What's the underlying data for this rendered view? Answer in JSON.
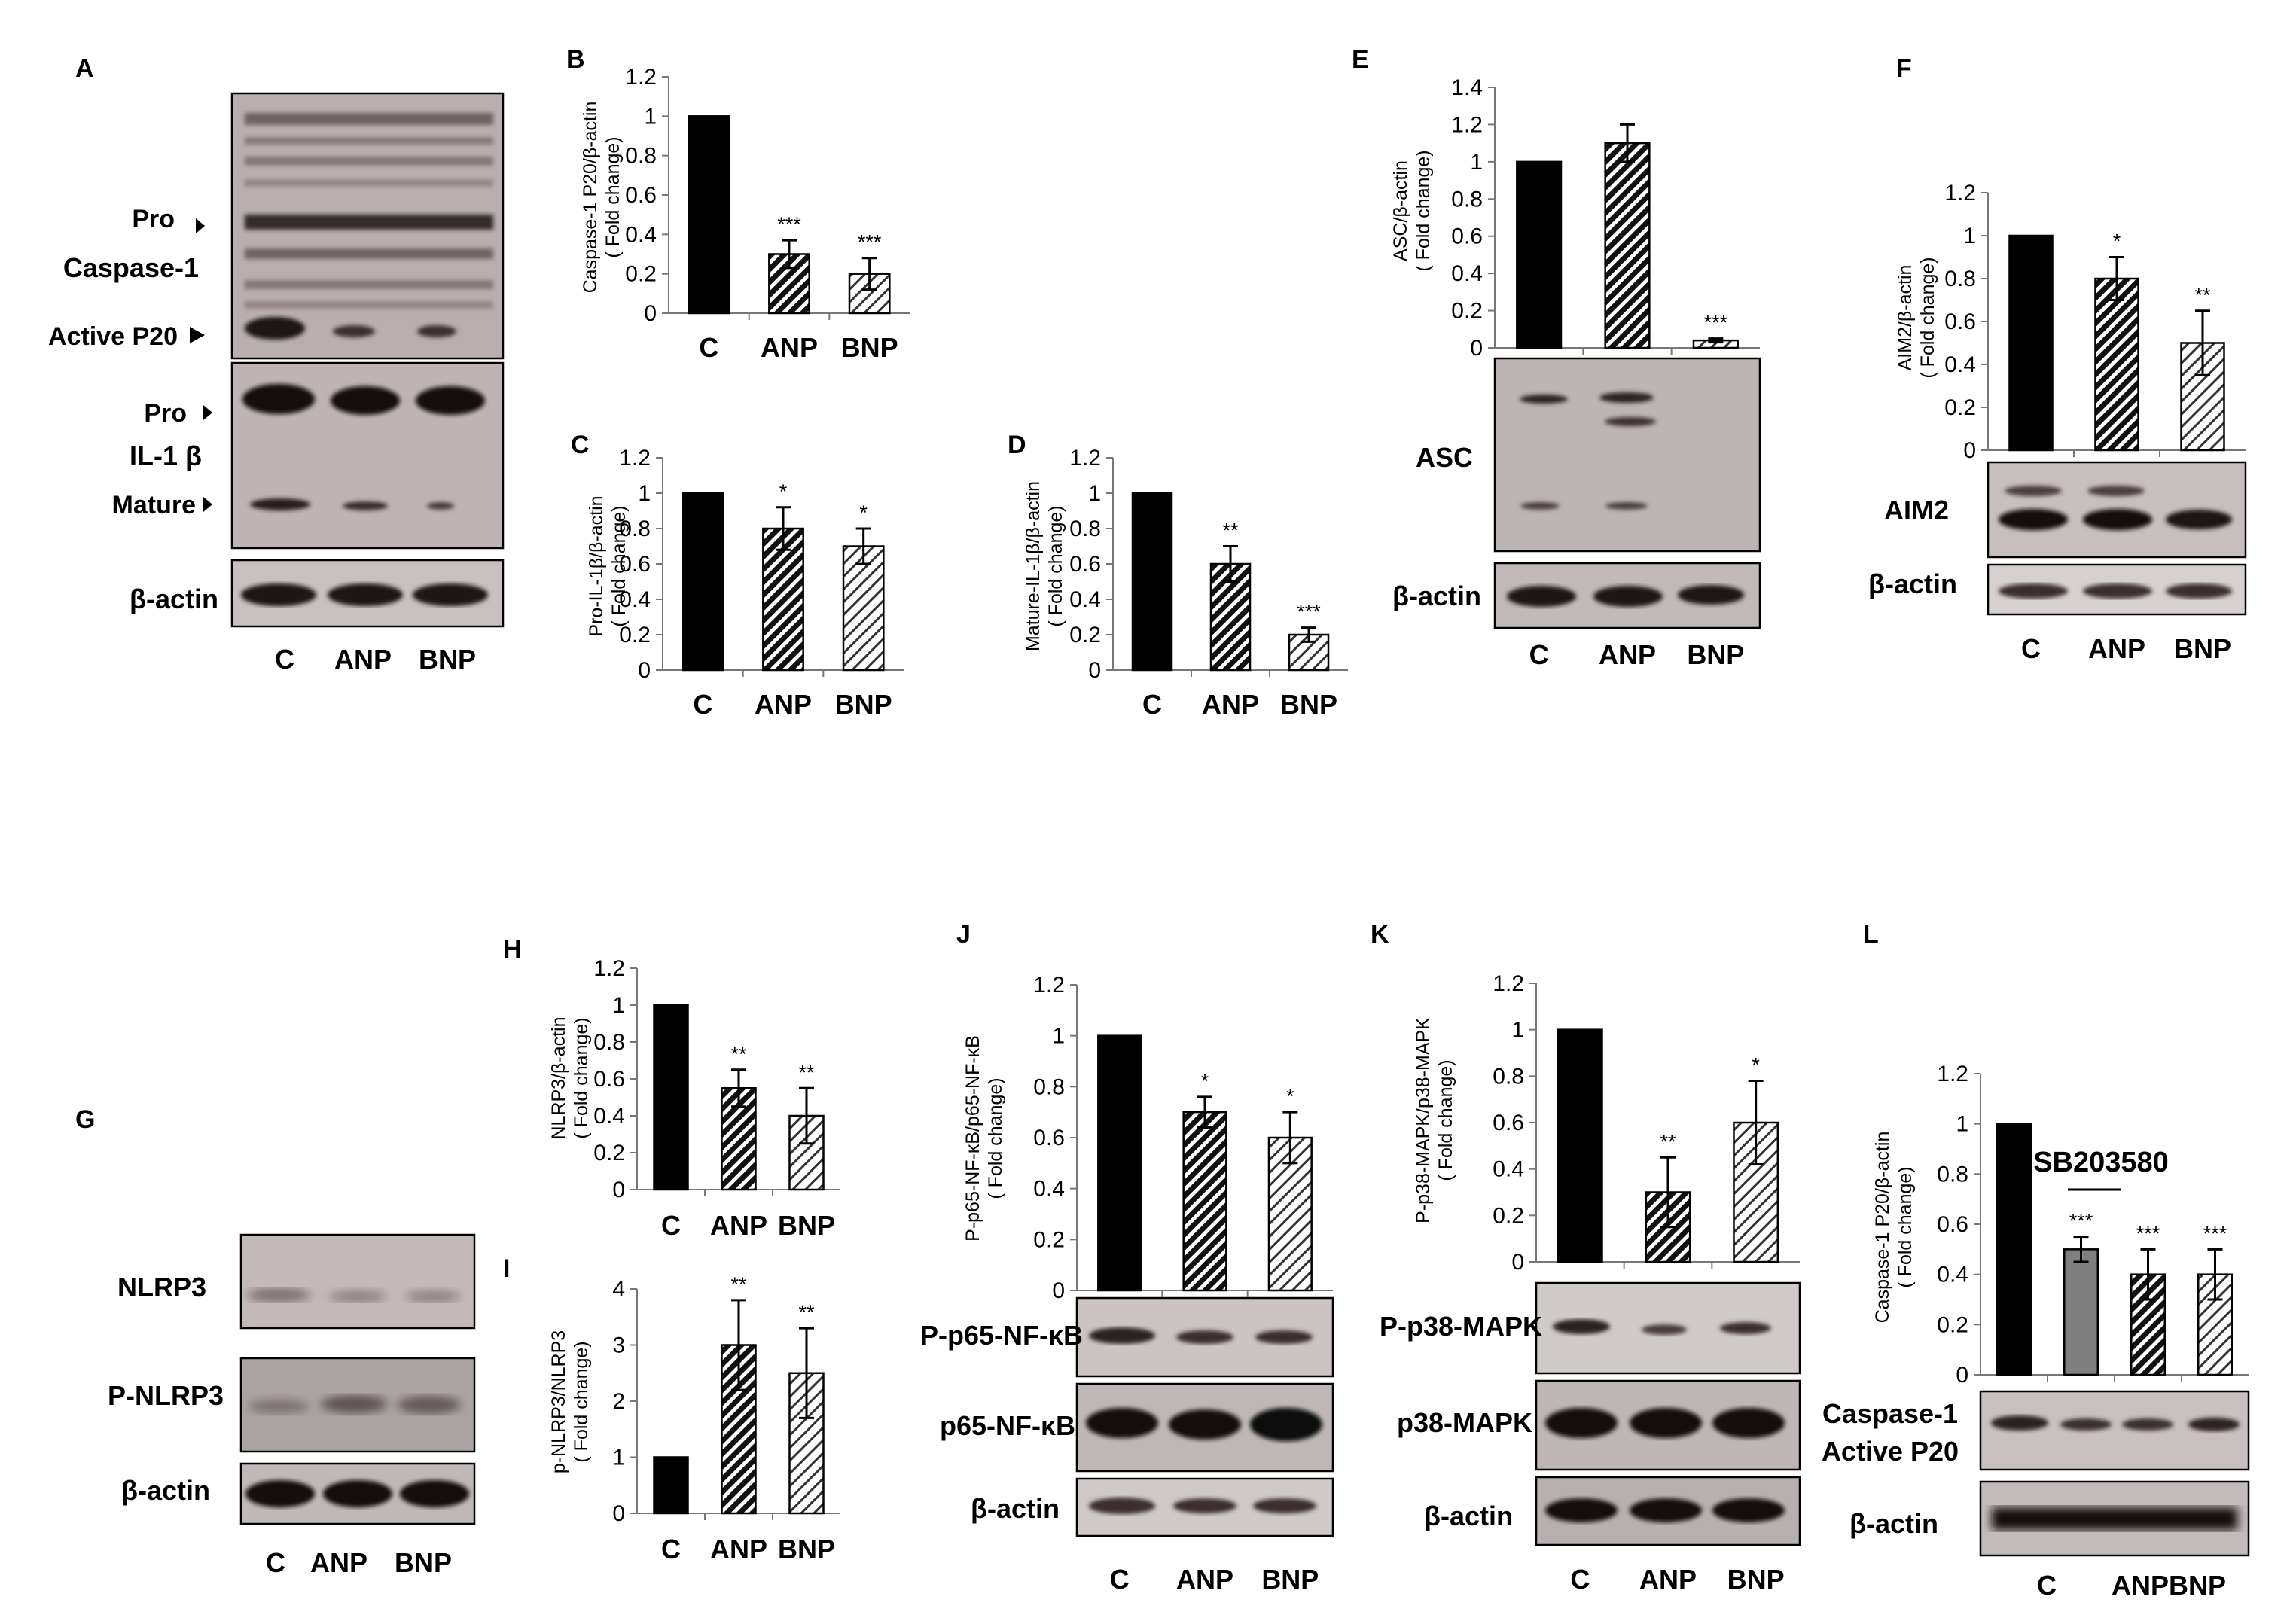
{
  "panels": {
    "A": {
      "letter": "A",
      "labels": {
        "pro1": "Pro",
        "caspase": "Caspase-1",
        "active": "Active P20",
        "pro2": "Pro",
        "il1b": "IL-1 β",
        "mature": "Mature",
        "actin": "β-actin"
      },
      "lanes": [
        "C",
        "ANP",
        "BNP"
      ]
    },
    "E": {
      "blot_labels": [
        "ASC",
        "β-actin"
      ]
    },
    "F": {
      "blot_labels": [
        "AIM2",
        "β-actin"
      ]
    },
    "G": {
      "letter": "G",
      "blot_labels": [
        "NLRP3",
        "P-NLRP3",
        "β-actin"
      ],
      "lanes": [
        "C",
        "ANP",
        "BNP"
      ]
    },
    "J": {
      "blot_labels": [
        "P-p65-NF-κB",
        "p65-NF-κB",
        "β-actin"
      ]
    },
    "K": {
      "blot_labels": [
        "P-p38-MAPK",
        "p38-MAPK",
        "β-actin"
      ]
    },
    "L": {
      "blot_labels": [
        "Caspase-1",
        "Active P20",
        "β-actin"
      ],
      "annotation": "SB203580",
      "lanes": [
        "C",
        "ANPBNP"
      ]
    }
  },
  "chart_data": [
    {
      "id": "B",
      "letter": "B",
      "type": "bar",
      "ylabel": [
        "Caspase-1 P20/β-actin",
        "( Fold change)"
      ],
      "ylim": [
        0,
        1.2
      ],
      "ticks": [
        "0",
        "0.2",
        "0.4",
        "0.6",
        "0.8",
        "1",
        "1.2"
      ],
      "categories": [
        "C",
        "ANP",
        "BNP"
      ],
      "values": [
        1,
        0.3,
        0.2
      ],
      "errors": [
        0,
        0.07,
        0.08
      ],
      "significance": [
        "",
        "***",
        "***"
      ],
      "colors": [
        "#000000",
        "hatch-dense",
        "hatch-light"
      ]
    },
    {
      "id": "C",
      "letter": "C",
      "type": "bar",
      "ylabel": [
        "Pro-IL-1β/β-actin",
        "( Fold change)"
      ],
      "ylim": [
        0,
        1.2
      ],
      "ticks": [
        "0",
        "0.2",
        "0.4",
        "0.6",
        "0.8",
        "1",
        "1.2"
      ],
      "categories": [
        "C",
        "ANP",
        "BNP"
      ],
      "values": [
        1,
        0.8,
        0.7
      ],
      "errors": [
        0,
        0.12,
        0.1
      ],
      "significance": [
        "",
        "*",
        "*"
      ]
    },
    {
      "id": "D",
      "letter": "D",
      "type": "bar",
      "ylabel": [
        "Mature-IL-1β/β-actin",
        "( Fold change)"
      ],
      "ylim": [
        0,
        1.2
      ],
      "ticks": [
        "0",
        "0.2",
        "0.4",
        "0.6",
        "0.8",
        "1",
        "1.2"
      ],
      "categories": [
        "C",
        "ANP",
        "BNP"
      ],
      "values": [
        1,
        0.6,
        0.2
      ],
      "errors": [
        0,
        0.1,
        0.04
      ],
      "significance": [
        "",
        "**",
        "***"
      ]
    },
    {
      "id": "E",
      "letter": "E",
      "type": "bar",
      "ylabel": [
        "ASC/β-actin",
        "( Fold change)"
      ],
      "ylim": [
        0,
        1.4
      ],
      "ticks": [
        "0",
        "0.2",
        "0.4",
        "0.6",
        "0.8",
        "1",
        "1.2",
        "1.4"
      ],
      "categories": [
        "C",
        "ANP",
        "BNP"
      ],
      "values": [
        1,
        1.1,
        0.04
      ],
      "errors": [
        0,
        0.1,
        0.01
      ],
      "significance": [
        "",
        "",
        "***"
      ]
    },
    {
      "id": "F",
      "letter": "F",
      "type": "bar",
      "ylabel": [
        "AIM2/β-actin",
        "( Fold change)"
      ],
      "ylim": [
        0,
        1.2
      ],
      "ticks": [
        "0",
        "0.2",
        "0.4",
        "0.6",
        "0.8",
        "1",
        "1.2"
      ],
      "categories": [
        "C",
        "ANP",
        "BNP"
      ],
      "values": [
        1,
        0.8,
        0.5
      ],
      "errors": [
        0,
        0.1,
        0.15
      ],
      "significance": [
        "",
        "*",
        "**"
      ]
    },
    {
      "id": "H",
      "letter": "H",
      "type": "bar",
      "ylabel": [
        "NLRP3/β-actin",
        "( Fold change)"
      ],
      "ylim": [
        0,
        1.2
      ],
      "ticks": [
        "0",
        "0.2",
        "0.4",
        "0.6",
        "0.8",
        "1",
        "1.2"
      ],
      "categories": [
        "C",
        "ANP",
        "BNP"
      ],
      "values": [
        1,
        0.55,
        0.4
      ],
      "errors": [
        0,
        0.1,
        0.15
      ],
      "significance": [
        "",
        "**",
        "**"
      ]
    },
    {
      "id": "I",
      "letter": "I",
      "type": "bar",
      "ylabel": [
        "p-NLRP3/NLRP3",
        "( Fold change)"
      ],
      "ylim": [
        0,
        4
      ],
      "ticks": [
        "0",
        "1",
        "2",
        "3",
        "4"
      ],
      "categories": [
        "C",
        "ANP",
        "BNP"
      ],
      "values": [
        1,
        3,
        2.5
      ],
      "errors": [
        0,
        0.8,
        0.8
      ],
      "significance": [
        "",
        "**",
        "**"
      ]
    },
    {
      "id": "J",
      "letter": "J",
      "type": "bar",
      "ylabel": [
        "P-p65-NF-κB/p65-NF-κB",
        "( Fold change)"
      ],
      "ylim": [
        0,
        1.2
      ],
      "ticks": [
        "0",
        "0.2",
        "0.4",
        "0.6",
        "0.8",
        "1",
        "1.2"
      ],
      "categories": [
        "C",
        "ANP",
        "BNP"
      ],
      "values": [
        1,
        0.7,
        0.6
      ],
      "errors": [
        0,
        0.06,
        0.1
      ],
      "significance": [
        "",
        "*",
        "*"
      ]
    },
    {
      "id": "K",
      "letter": "K",
      "type": "bar",
      "ylabel": [
        "P-p38-MAPK/p38-MAPK",
        "( Fold change)"
      ],
      "ylim": [
        0,
        1.2
      ],
      "ticks": [
        "0",
        "0.2",
        "0.4",
        "0.6",
        "0.8",
        "1",
        "1.2"
      ],
      "categories": [
        "C",
        "ANP",
        "BNP"
      ],
      "values": [
        1,
        0.3,
        0.6
      ],
      "errors": [
        0,
        0.15,
        0.18
      ],
      "significance": [
        "",
        "**",
        "*"
      ]
    },
    {
      "id": "L",
      "letter": "L",
      "type": "bar",
      "ylabel": [
        "Caspase-1 P20/β-actin",
        "( Fold change)"
      ],
      "ylim": [
        0,
        1.2
      ],
      "ticks": [
        "0",
        "0.2",
        "0.4",
        "0.6",
        "0.8",
        "1",
        "1.2"
      ],
      "categories": [
        "C",
        "SB203580",
        "ANP",
        "BNP"
      ],
      "values": [
        1,
        0.5,
        0.4,
        0.4
      ],
      "errors": [
        0,
        0.05,
        0.1,
        0.1
      ],
      "significance": [
        "",
        "***",
        "***",
        "***"
      ]
    }
  ]
}
